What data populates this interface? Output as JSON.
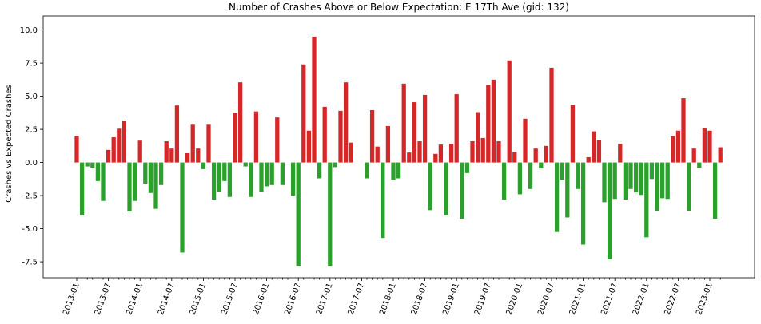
{
  "chart_data": {
    "type": "bar",
    "title": "Number of Crashes Above or Below Expectation: E 17Th Ave (gid: 132)",
    "y_label": "Crashes vs Expected Crashes",
    "categories": [
      "2013-01",
      null,
      null,
      null,
      null,
      null,
      "2013-07",
      null,
      null,
      null,
      null,
      null,
      "2014-01",
      null,
      null,
      null,
      null,
      null,
      "2014-07",
      null,
      null,
      null,
      null,
      null,
      "2015-01",
      null,
      null,
      null,
      null,
      null,
      "2015-07",
      null,
      null,
      null,
      null,
      null,
      "2016-01",
      null,
      null,
      null,
      null,
      null,
      "2016-07",
      null,
      null,
      null,
      null,
      null,
      "2017-01",
      null,
      null,
      null,
      null,
      null,
      "2017-07",
      null,
      null,
      null,
      null,
      null,
      "2018-01",
      null,
      null,
      null,
      null,
      null,
      "2018-07",
      null,
      null,
      null,
      null,
      null,
      "2019-01",
      null,
      null,
      null,
      null,
      null,
      "2019-07",
      null,
      null,
      null,
      null,
      null,
      "2020-01",
      null,
      null,
      null,
      null,
      null,
      "2020-07",
      null,
      null,
      null,
      null,
      null,
      "2021-01",
      null,
      null,
      null,
      null,
      null,
      "2021-07",
      null,
      null,
      null,
      null,
      null,
      "2022-01",
      null,
      null,
      null,
      null,
      null,
      "2022-07",
      null,
      null,
      null,
      null,
      null,
      "2023-01",
      null,
      null
    ],
    "values": [
      2.0,
      -4.0,
      -0.3,
      -0.4,
      -1.4,
      -2.9,
      0.95,
      1.9,
      2.55,
      3.15,
      -3.7,
      -2.9,
      1.65,
      -1.6,
      -2.3,
      -3.5,
      -1.7,
      1.6,
      1.05,
      4.3,
      -6.8,
      0.7,
      2.85,
      1.05,
      -0.5,
      2.85,
      -2.8,
      -2.2,
      -1.4,
      -2.6,
      3.75,
      6.05,
      -0.3,
      -2.6,
      3.85,
      -2.2,
      -1.8,
      -1.7,
      3.4,
      -1.7,
      0,
      -2.5,
      -7.8,
      7.4,
      2.4,
      9.5,
      -1.2,
      4.2,
      -7.8,
      -0.35,
      3.9,
      6.05,
      1.5,
      0,
      0,
      -1.2,
      3.95,
      1.2,
      -5.7,
      2.75,
      -1.3,
      -1.2,
      5.95,
      0.75,
      4.55,
      1.6,
      5.1,
      -3.6,
      0.65,
      1.35,
      -4.0,
      1.4,
      5.15,
      -4.25,
      -0.8,
      1.6,
      3.8,
      1.85,
      5.85,
      6.25,
      1.6,
      -2.8,
      7.7,
      0.8,
      -2.4,
      3.3,
      -2.0,
      1.05,
      -0.45,
      1.25,
      7.15,
      -5.25,
      -1.3,
      -4.15,
      4.35,
      -2.0,
      -6.2,
      0.4,
      2.35,
      1.7,
      -3.0,
      -7.3,
      -2.75,
      1.4,
      -2.8,
      -2.0,
      -2.25,
      -2.45,
      -5.65,
      -1.25,
      -3.65,
      -2.7,
      -2.75,
      2.0,
      2.4,
      4.85,
      -3.65,
      1.05,
      -0.4,
      2.6,
      2.4,
      -4.25,
      1.15
    ],
    "positive_color": "#d62728",
    "negative_color": "#2ca02c",
    "ylim": [
      -8.7,
      11.06
    ],
    "yticks": [
      -7.5,
      {
        "value": -5.0,
        "label": "-5.0"
      },
      -2.5,
      {
        "value": 0.0,
        "label": "0.0"
      },
      2.5,
      {
        "value": 5.0,
        "label": "5.0"
      },
      7.5,
      {
        "value": 10.0,
        "label": "10.0"
      }
    ],
    "grid": false
  }
}
